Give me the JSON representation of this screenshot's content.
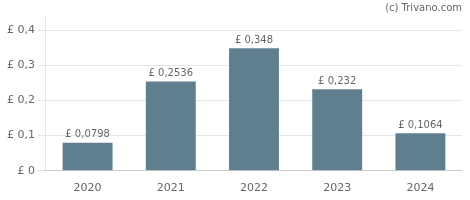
{
  "chart_data": {
    "type": "bar",
    "categories": [
      "2020",
      "2021",
      "2022",
      "2023",
      "2024"
    ],
    "values": [
      0.0798,
      0.2536,
      0.348,
      0.232,
      0.1064
    ],
    "value_labels": [
      "£ 0,0798",
      "£ 0,2536",
      "£ 0,348",
      "£ 0,232",
      "£ 0,1064"
    ],
    "data_labels": true,
    "color": "#5f7f8e",
    "ylim": [
      0,
      0.44
    ],
    "yticks": [
      {
        "value": 0.0,
        "label": "£ 0"
      },
      {
        "value": 0.1,
        "label": "£ 0,1"
      },
      {
        "value": 0.2,
        "label": "£ 0,2"
      },
      {
        "value": 0.3,
        "label": "£ 0,3"
      },
      {
        "value": 0.4,
        "label": "£ 0,4"
      }
    ],
    "grid": true,
    "annotations": [
      "(c) Trivano.com"
    ]
  }
}
